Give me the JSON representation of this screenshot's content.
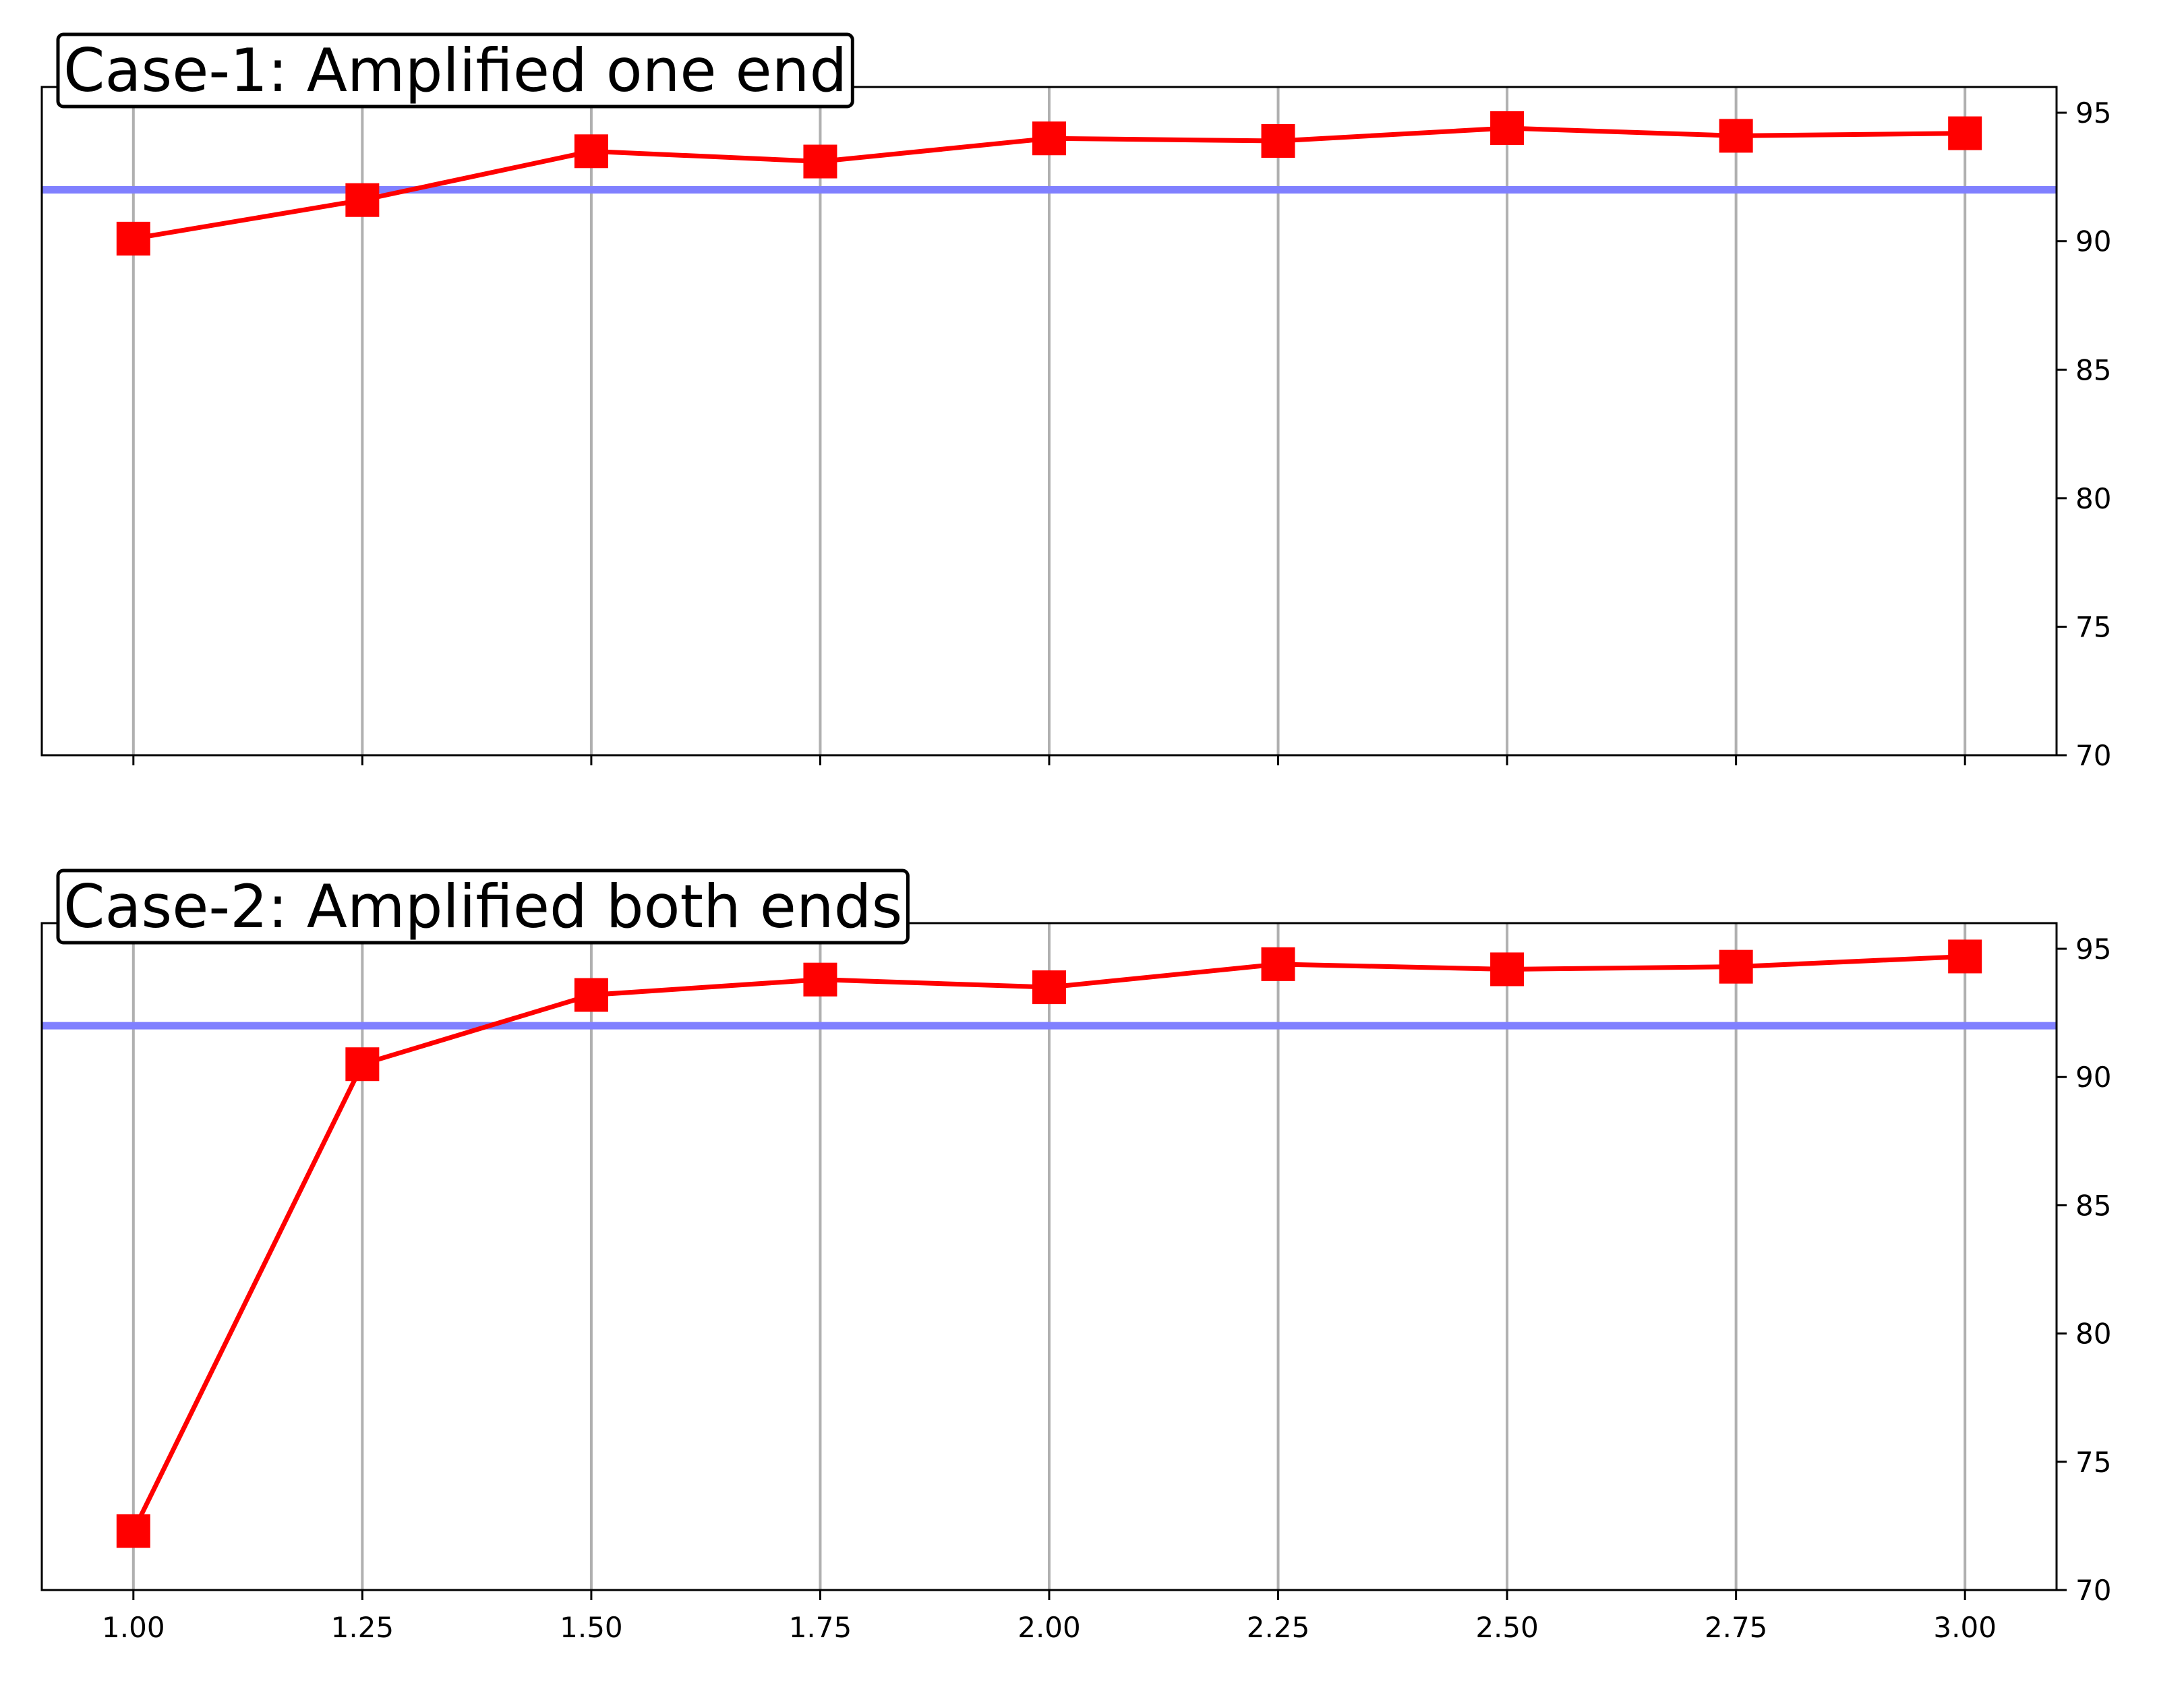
{
  "chart_data": [
    {
      "type": "line",
      "title": "Case-1: Amplified one end",
      "x": [
        1.0,
        1.25,
        1.5,
        1.75,
        2.0,
        2.25,
        2.5,
        2.75,
        3.0
      ],
      "series": [
        {
          "color": "#ff0000",
          "values": [
            90.1,
            91.6,
            93.5,
            93.1,
            94.0,
            93.9,
            94.4,
            94.1,
            94.2
          ]
        }
      ],
      "reference_line": {
        "value": 92,
        "color": "#8080ff"
      },
      "xlim": [
        0.9,
        3.1
      ],
      "xticks": [
        1.0,
        1.25,
        1.5,
        1.75,
        2.0,
        2.25,
        2.5,
        2.75,
        3.0
      ],
      "ylim": [
        70,
        96
      ],
      "yticks": [
        70,
        75,
        80,
        85,
        90,
        95
      ],
      "y_axis_side": "right",
      "grid": "x"
    },
    {
      "type": "line",
      "title": "Case-2: Amplified both ends",
      "x": [
        1.0,
        1.25,
        1.5,
        1.75,
        2.0,
        2.25,
        2.5,
        2.75,
        3.0
      ],
      "series": [
        {
          "color": "#ff0000",
          "values": [
            72.3,
            90.5,
            93.2,
            93.8,
            93.5,
            94.4,
            94.2,
            94.3,
            94.7
          ]
        }
      ],
      "reference_line": {
        "value": 92,
        "color": "#8080ff"
      },
      "xlim": [
        0.9,
        3.1
      ],
      "xticks": [
        {
          "value": 1.0,
          "label": "1.00"
        },
        {
          "value": 1.25,
          "label": "1.25"
        },
        {
          "value": 1.5,
          "label": "1.50"
        },
        {
          "value": 1.75,
          "label": "1.75"
        },
        {
          "value": 2.0,
          "label": "2.00"
        },
        {
          "value": 2.25,
          "label": "2.25"
        },
        {
          "value": 2.5,
          "label": "2.50"
        },
        {
          "value": 2.75,
          "label": "2.75"
        },
        {
          "value": 3.0,
          "label": "3.00"
        }
      ],
      "ylim": [
        70,
        96
      ],
      "yticks": [
        70,
        75,
        80,
        85,
        90,
        95
      ],
      "y_axis_side": "right",
      "grid": "x"
    }
  ]
}
